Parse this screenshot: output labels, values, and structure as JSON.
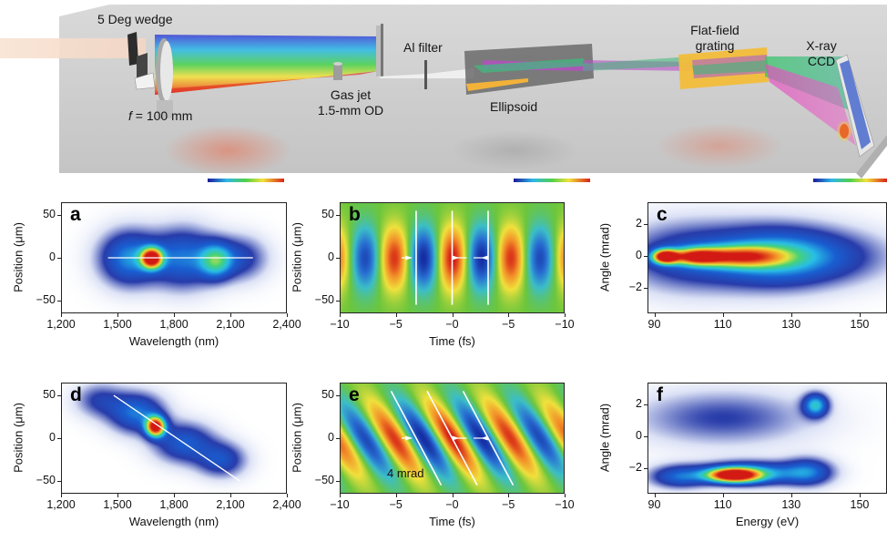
{
  "setup": {
    "labels": {
      "wedge": "5 Deg wedge",
      "focal_f": "f",
      "focal_rest": " = 100 mm",
      "gas_jet_line1": "Gas jet",
      "gas_jet_line2": "1.5-mm OD",
      "al_filter": "Al filter",
      "ellipsoid": "Ellipsoid",
      "grating_line1": "Flat-field",
      "grating_line2": "grating",
      "ccd_line1": "X-ray",
      "ccd_line2": "CCD"
    }
  },
  "panels": [
    {
      "letter": "a",
      "ylabel": "Position (μm)",
      "xlabel": "Wavelength (nm)",
      "xticks": [
        "1,200",
        "1,500",
        "1,800",
        "2,100",
        "2,400"
      ],
      "yticks": [
        "50",
        "0",
        "−50"
      ]
    },
    {
      "letter": "b",
      "ylabel": "Position (μm)",
      "xlabel": "Time (fs)",
      "xticks": [
        "−10",
        "−5",
        "−0",
        "−5",
        "−10"
      ],
      "yticks": [
        "50",
        "0",
        "−50"
      ]
    },
    {
      "letter": "c",
      "ylabel": "Angle (mrad)",
      "xlabel": "",
      "xticks": [
        "90",
        "110",
        "130",
        "150"
      ],
      "yticks": [
        "2",
        "0",
        "−2"
      ]
    },
    {
      "letter": "d",
      "ylabel": "Position (μm)",
      "xlabel": "Wavelength (nm)",
      "xticks": [
        "1,200",
        "1,500",
        "1,800",
        "2,100",
        "2,400"
      ],
      "yticks": [
        "50",
        "0",
        "−50"
      ]
    },
    {
      "letter": "e",
      "ylabel": "Position (μm)",
      "xlabel": "Time (fs)",
      "xticks": [
        "−10",
        "−5",
        "−0",
        "−5",
        "−10"
      ],
      "yticks": [
        "50",
        "0",
        "−50"
      ],
      "annotation": "4 mrad"
    },
    {
      "letter": "f",
      "ylabel": "Angle (mrad)",
      "xlabel": "Energy (eV)",
      "xticks": [
        "90",
        "110",
        "130",
        "150"
      ],
      "yticks": [
        "2",
        "0",
        "−2"
      ]
    }
  ],
  "colors": {
    "jet_low": "#0a1a8c",
    "jet_mid": "#2fd3a8",
    "jet_high": "#d41a12",
    "field_bg": "#6cc63c"
  },
  "chart_data": [
    {
      "type": "heatmap",
      "panel": "a",
      "xlabel": "Wavelength (nm)",
      "ylabel": "Position (μm)",
      "xlim": [
        1200,
        2400
      ],
      "ylim": [
        -65,
        65
      ],
      "blobs": [
        {
          "x": 1680,
          "y": 0,
          "sx": 38,
          "sy": 8,
          "amp": 1.0
        },
        {
          "x": 1560,
          "y": 0,
          "sx": 110,
          "sy": 22,
          "amp": 0.38
        },
        {
          "x": 1850,
          "y": 0,
          "sx": 120,
          "sy": 24,
          "amp": 0.34
        },
        {
          "x": 2020,
          "y": -3,
          "sx": 60,
          "sy": 14,
          "amp": 0.42
        },
        {
          "x": 2150,
          "y": 0,
          "sx": 100,
          "sy": 18,
          "amp": 0.22
        }
      ],
      "guide_lines": [
        {
          "x1": 1450,
          "y1": 0,
          "x2": 2220,
          "y2": 0
        }
      ]
    },
    {
      "type": "heatmap",
      "panel": "b",
      "xlabel": "Time (fs)",
      "ylabel": "Position (μm)",
      "xlim": [
        -10,
        10
      ],
      "ylim": [
        -65,
        65
      ],
      "field": {
        "period_fs": 5.2,
        "tilt_per_um": 0.0,
        "width_um": 32
      },
      "marker_lines_fs": [
        -3.2,
        0,
        3.2
      ]
    },
    {
      "type": "heatmap",
      "panel": "c",
      "xlabel": "",
      "ylabel": "Angle (mrad)",
      "xlim": [
        88,
        158
      ],
      "ylim": [
        -3.6,
        3.4
      ],
      "blobs": [
        {
          "x": 93,
          "y": 0,
          "sx": 2.5,
          "sy": 0.3,
          "amp": 1.0
        },
        {
          "x": 102,
          "y": 0,
          "sx": 5,
          "sy": 0.35,
          "amp": 0.7
        },
        {
          "x": 115,
          "y": 0,
          "sx": 9,
          "sy": 0.45,
          "amp": 0.62
        },
        {
          "x": 125,
          "y": 0,
          "sx": 12,
          "sy": 1.3,
          "amp": 0.35
        },
        {
          "x": 140,
          "y": 0,
          "sx": 14,
          "sy": 1.2,
          "amp": 0.2
        },
        {
          "x": 100,
          "y": 0,
          "sx": 14,
          "sy": 1.5,
          "amp": 0.25
        }
      ]
    },
    {
      "type": "heatmap",
      "panel": "d",
      "xlabel": "Wavelength (nm)",
      "ylabel": "Position (μm)",
      "xlim": [
        1200,
        2400
      ],
      "ylim": [
        -65,
        65
      ],
      "blobs": [
        {
          "x": 1700,
          "y": 14,
          "sx": 35,
          "sy": 8,
          "amp": 1.0
        },
        {
          "x": 1600,
          "y": 30,
          "sx": 100,
          "sy": 16,
          "amp": 0.35
        },
        {
          "x": 1850,
          "y": -5,
          "sx": 110,
          "sy": 16,
          "amp": 0.3
        },
        {
          "x": 2050,
          "y": -25,
          "sx": 90,
          "sy": 14,
          "amp": 0.26
        },
        {
          "x": 1400,
          "y": 45,
          "sx": 90,
          "sy": 14,
          "amp": 0.18
        }
      ],
      "guide_lines": [
        {
          "x1": 1480,
          "y1": 50,
          "x2": 2150,
          "y2": -50
        }
      ]
    },
    {
      "type": "heatmap",
      "panel": "e",
      "xlabel": "Time (fs)",
      "ylabel": "Position (μm)",
      "xlim": [
        -10,
        10
      ],
      "ylim": [
        -65,
        65
      ],
      "field": {
        "period_fs": 5.2,
        "tilt_per_um": 0.045,
        "width_um": 40
      },
      "marker_lines_fs": [
        -3.2,
        0,
        3.2
      ]
    },
    {
      "type": "heatmap",
      "panel": "f",
      "xlabel": "Energy (eV)",
      "ylabel": "Angle (mrad)",
      "xlim": [
        88,
        158
      ],
      "ylim": [
        -3.6,
        3.4
      ],
      "blobs": [
        {
          "x": 113,
          "y": -2.4,
          "sx": 5,
          "sy": 0.3,
          "amp": 1.0
        },
        {
          "x": 118,
          "y": -2.3,
          "sx": 10,
          "sy": 0.5,
          "amp": 0.45
        },
        {
          "x": 97,
          "y": -2.5,
          "sx": 6,
          "sy": 0.5,
          "amp": 0.3
        },
        {
          "x": 137,
          "y": 2.0,
          "sx": 2.5,
          "sy": 0.5,
          "amp": 0.45
        },
        {
          "x": 110,
          "y": 1.2,
          "sx": 18,
          "sy": 1.2,
          "amp": 0.18
        },
        {
          "x": 135,
          "y": -2.2,
          "sx": 5,
          "sy": 0.6,
          "amp": 0.3
        }
      ]
    }
  ]
}
